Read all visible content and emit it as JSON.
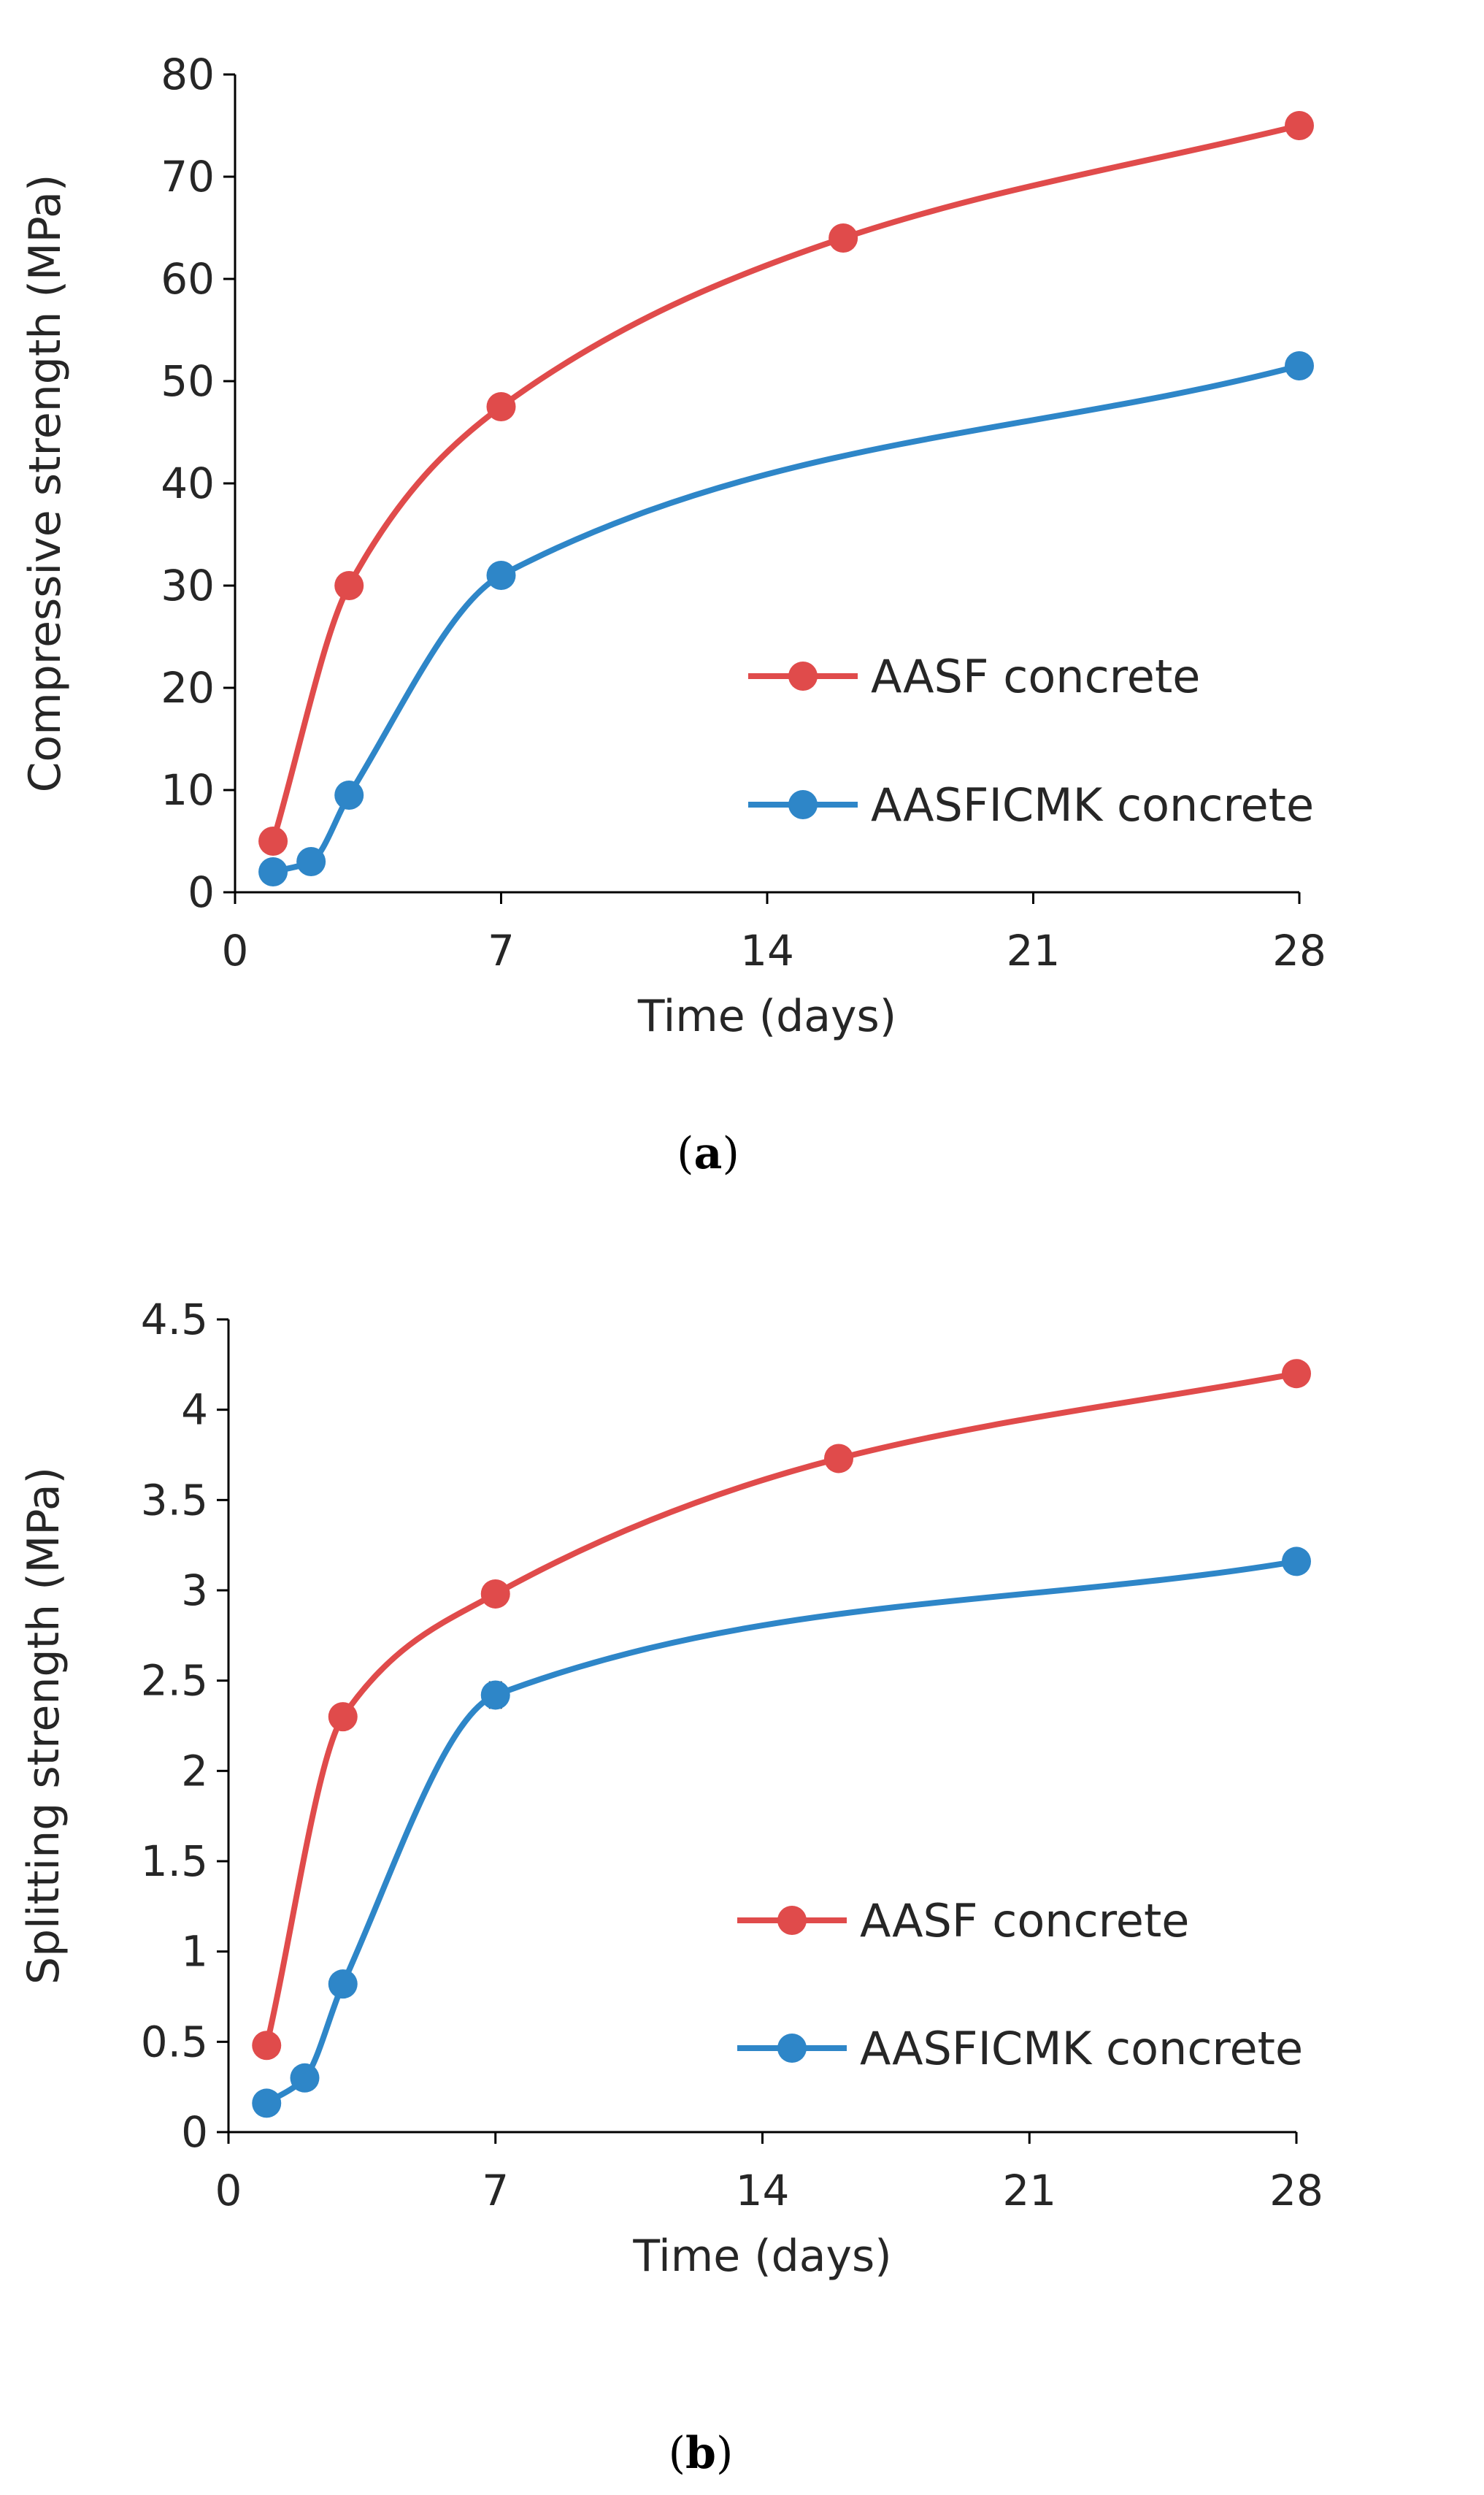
{
  "chart_data": [
    {
      "type": "line",
      "caption_open": "(",
      "caption_letter": "a",
      "caption_close": ")",
      "xlabel": "Time (days)",
      "ylabel": "Compressive strength (MPa)",
      "xlim": [
        0,
        28
      ],
      "ylim": [
        0,
        80
      ],
      "xticks": [
        0,
        7,
        14,
        21,
        28
      ],
      "yticks": [
        0,
        10,
        20,
        30,
        40,
        50,
        60,
        70,
        80
      ],
      "ytick_labels": [
        "0",
        "10",
        "20",
        "30",
        "40",
        "50",
        "60",
        "70",
        "80"
      ],
      "legend": "right",
      "series": [
        {
          "name": "AASF concrete",
          "color": "#e04b4b",
          "x": [
            1,
            3,
            7,
            16,
            28
          ],
          "y": [
            5,
            30,
            47.5,
            64,
            75
          ]
        },
        {
          "name": "AASFICMK concrete",
          "color": "#2e86c8",
          "x": [
            1,
            2,
            3,
            7,
            28
          ],
          "y": [
            2,
            3,
            9.5,
            31,
            51.5
          ]
        }
      ]
    },
    {
      "type": "line",
      "caption_open": "(",
      "caption_letter": "b",
      "caption_close": ")",
      "xlabel": "Time (days)",
      "ylabel": "Splitting strength (MPa)",
      "xlim": [
        0,
        28
      ],
      "ylim": [
        0,
        4.5
      ],
      "xticks": [
        0,
        7,
        14,
        21,
        28
      ],
      "yticks": [
        0,
        0.5,
        1,
        1.5,
        2,
        2.5,
        3,
        3.5,
        4,
        4.5
      ],
      "ytick_labels": [
        "0",
        "0.5",
        "1",
        "1.5",
        "2",
        "2.5",
        "3",
        "3.5",
        "4",
        "4.5"
      ],
      "legend": "right",
      "series": [
        {
          "name": "AASF concrete",
          "color": "#e04b4b",
          "x": [
            1,
            3,
            7,
            16,
            28
          ],
          "y": [
            0.48,
            2.3,
            2.98,
            3.73,
            4.2
          ]
        },
        {
          "name": "AASFICMK concrete",
          "color": "#2e86c8",
          "x": [
            1,
            2,
            3,
            7,
            28
          ],
          "y": [
            0.16,
            0.3,
            0.82,
            2.42,
            3.16
          ],
          "error": [
            0,
            0,
            0,
            0.07,
            0
          ]
        }
      ]
    }
  ]
}
